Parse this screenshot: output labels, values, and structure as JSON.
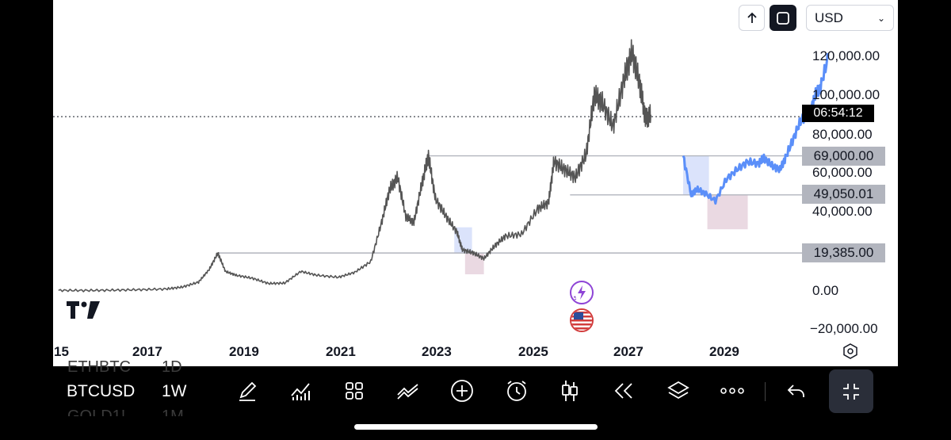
{
  "header": {
    "up_icon": "arrow-up-icon",
    "fullscreen_icon": "square-frame-icon",
    "currency": "USD"
  },
  "price_axis": {
    "labels": [
      "120,000.00",
      "100,000.00",
      "80,000.00",
      "60,000.00",
      "40,000.00",
      "0.00",
      "−20,000.00"
    ],
    "countdown": "06:54:12",
    "levels": [
      "69,000.00",
      "49,050.01",
      "19,385.00"
    ]
  },
  "time_axis": {
    "labels": [
      "15",
      "2017",
      "2019",
      "2021",
      "2023",
      "2025",
      "2027",
      "2029"
    ]
  },
  "toolbar": {
    "symbol": "BTCUSD",
    "interval": "1W",
    "prev_symbol": "ETHBTC",
    "prev_interval": "1D",
    "next_symbol": "GOLD1!",
    "next_interval": "1M",
    "icons": [
      "pen-icon",
      "indicators-icon",
      "grid-icon",
      "drawing-tools-icon",
      "plus-icon",
      "alarm-clock-icon",
      "candlestick-icon",
      "rewind-icon",
      "layers-icon",
      "more-icon",
      "undo-icon",
      "collapse-icon"
    ]
  },
  "colors": {
    "price_line": "#555555",
    "projection": "#5b8ff9",
    "level_line": "#b2b5be",
    "blue_zone": "#dbe3fb",
    "pink_zone": "#ead9e2"
  },
  "chart_data": {
    "type": "line",
    "title": "",
    "xlabel": "",
    "ylabel": "",
    "x_ticks": [
      "2017",
      "2019",
      "2021",
      "2023",
      "2025",
      "2027",
      "2029"
    ],
    "y_ticks": [
      -20000,
      0,
      40000,
      60000,
      80000,
      100000,
      120000
    ],
    "ylim": [
      -24000,
      130000
    ],
    "xlim": [
      2014.9,
      2030.5
    ],
    "horizontal_levels": [
      69000,
      49050.01,
      19385
    ],
    "current_price": 89000,
    "series": [
      {
        "x": [
          2015.0,
          2015.5,
          2016.0,
          2016.5,
          2017.0,
          2017.3,
          2017.6,
          2017.8,
          2017.96,
          2018.1,
          2018.3,
          2018.6,
          2018.9,
          2019.2,
          2019.5,
          2019.8,
          2020.2,
          2020.5,
          2020.8,
          2021.0,
          2021.15,
          2021.3,
          2021.45,
          2021.6,
          2021.75,
          2021.87,
          2022.0,
          2022.2,
          2022.4,
          2022.5,
          2022.7,
          2022.9,
          2023.1,
          2023.3,
          2023.6,
          2023.9,
          2024.1,
          2024.2,
          2024.4,
          2024.6,
          2024.8,
          2024.95,
          2025.1,
          2025.3,
          2025.5,
          2025.65,
          2025.8,
          2025.9,
          2026.0
        ],
        "y": [
          300,
          250,
          400,
          650,
          1000,
          2000,
          4500,
          11000,
          19385,
          10000,
          8000,
          6500,
          3800,
          4000,
          10000,
          8000,
          7000,
          9500,
          15000,
          35000,
          52000,
          58000,
          38000,
          35000,
          55000,
          69000,
          47000,
          38000,
          30000,
          21000,
          19500,
          16500,
          23000,
          28000,
          29000,
          42000,
          45000,
          66000,
          62000,
          58000,
          70000,
          100000,
          96000,
          84000,
          108000,
          122000,
          105000,
          88000,
          90000
        ]
      },
      {
        "x": [
          2026.6,
          2026.75,
          2026.85,
          2027.0,
          2027.2,
          2027.4,
          2027.6,
          2027.8,
          2028.0,
          2028.1,
          2028.25,
          2028.4,
          2028.5,
          2028.65,
          2028.8,
          2028.95,
          2029.05,
          2029.15,
          2029.3
        ],
        "y": [
          69000,
          49000,
          52000,
          50000,
          46000,
          57000,
          62000,
          66000,
          65000,
          68000,
          64000,
          62000,
          68000,
          78000,
          88000,
          90000,
          100000,
          104000,
          120000
        ]
      }
    ]
  }
}
